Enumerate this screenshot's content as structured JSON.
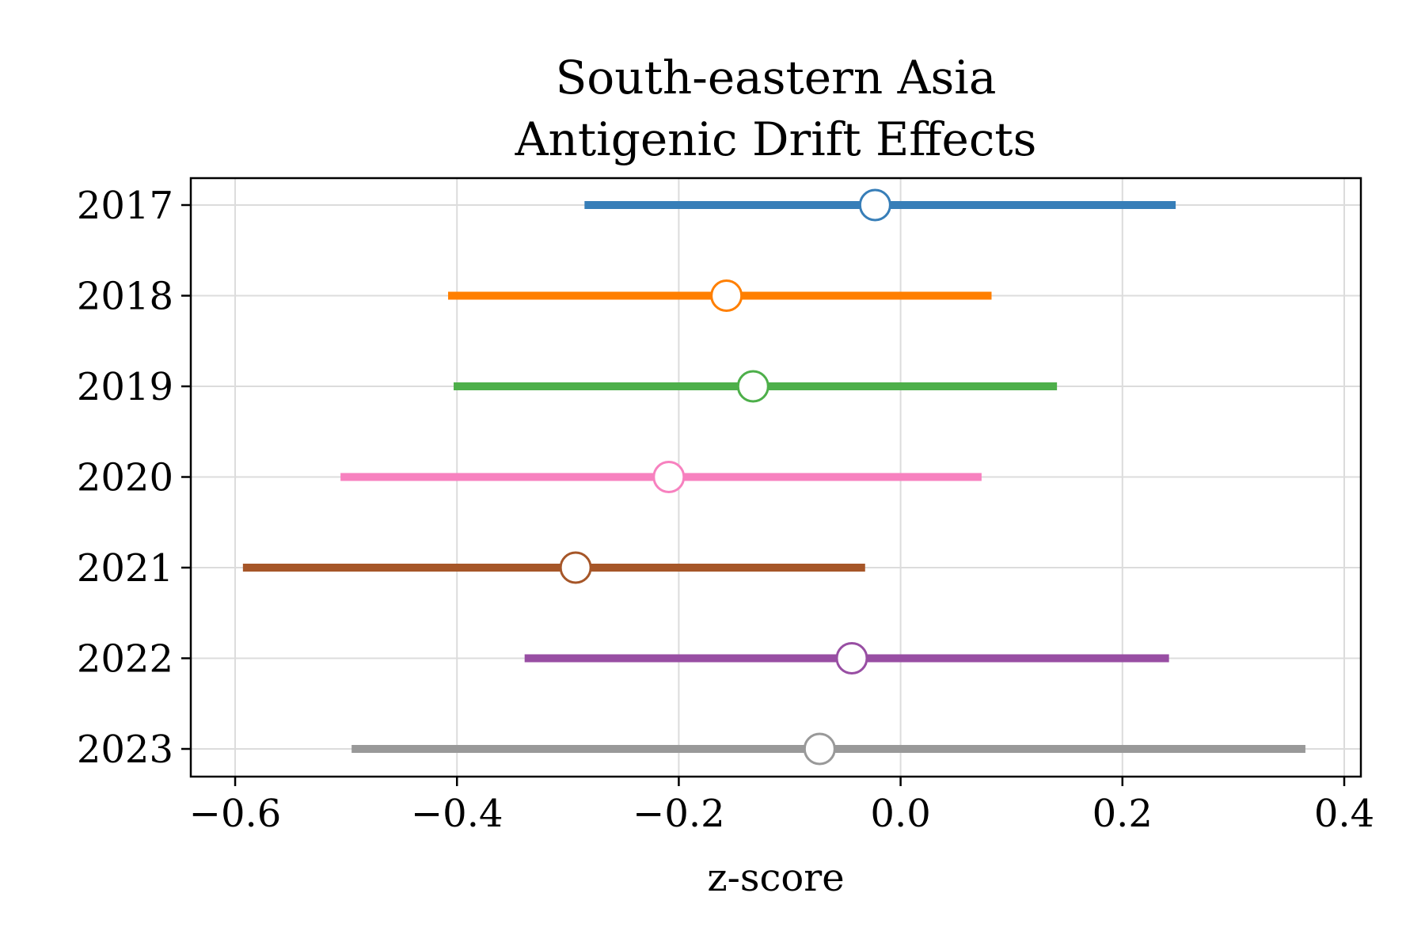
{
  "chart_data": {
    "type": "forest",
    "title": [
      "South-eastern Asia",
      "Antigenic Drift Effects"
    ],
    "xlabel": "z-score",
    "ylabel": "",
    "xlim": [
      -0.64,
      0.415
    ],
    "x_ticks": [
      -0.6,
      -0.4,
      -0.2,
      0.0,
      0.2,
      0.4
    ],
    "x_tick_labels": [
      "−0.6",
      "−0.4",
      "−0.2",
      "0.0",
      "0.2",
      "0.4"
    ],
    "grid": true,
    "categories": [
      "2017",
      "2018",
      "2019",
      "2020",
      "2021",
      "2022",
      "2023"
    ],
    "series": [
      {
        "category": "2017",
        "estimate": -0.023,
        "lower": -0.285,
        "upper": 0.248,
        "color": "#377eb8"
      },
      {
        "category": "2018",
        "estimate": -0.157,
        "lower": -0.408,
        "upper": 0.082,
        "color": "#ff7f00"
      },
      {
        "category": "2019",
        "estimate": -0.133,
        "lower": -0.403,
        "upper": 0.141,
        "color": "#4daf4a"
      },
      {
        "category": "2020",
        "estimate": -0.209,
        "lower": -0.505,
        "upper": 0.073,
        "color": "#f781bf"
      },
      {
        "category": "2021",
        "estimate": -0.293,
        "lower": -0.593,
        "upper": -0.032,
        "color": "#a65628"
      },
      {
        "category": "2022",
        "estimate": -0.044,
        "lower": -0.339,
        "upper": 0.242,
        "color": "#984ea3"
      },
      {
        "category": "2023",
        "estimate": -0.073,
        "lower": -0.495,
        "upper": 0.365,
        "color": "#999999"
      }
    ]
  }
}
